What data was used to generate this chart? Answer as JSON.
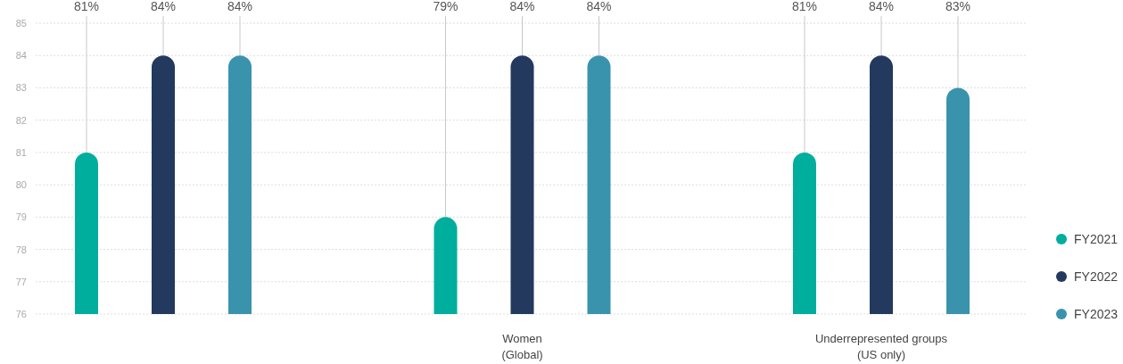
{
  "chart_data": {
    "type": "bar",
    "categories": [
      null,
      "Women\n(Global)",
      "Underrepresented groups\n(US only)"
    ],
    "series": [
      {
        "name": "FY2021",
        "color": "#00ae9e",
        "values": [
          81,
          79,
          81
        ],
        "value_labels": [
          "81%",
          "79%",
          "81%"
        ]
      },
      {
        "name": "FY2022",
        "color": "#23395d",
        "values": [
          84,
          84,
          84
        ],
        "value_labels": [
          "84%",
          "84%",
          "84%"
        ]
      },
      {
        "name": "FY2023",
        "color": "#3a93ad",
        "values": [
          84,
          84,
          83
        ],
        "value_labels": [
          "84%",
          "84%",
          "83%"
        ]
      }
    ],
    "ylim": [
      76,
      85
    ],
    "yticks": [
      76,
      77,
      78,
      79,
      80,
      81,
      82,
      83,
      84,
      85
    ],
    "grid": "y",
    "legend": "right"
  }
}
